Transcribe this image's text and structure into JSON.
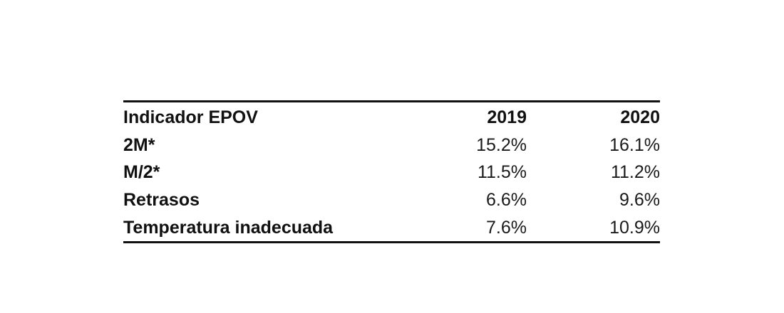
{
  "table": {
    "headers": {
      "indicator": "Indicador EPOV",
      "year_2019": "2019",
      "year_2020": "2020"
    },
    "rows": [
      {
        "label": "2M*",
        "v2019": "15.2%",
        "v2020": "16.1%"
      },
      {
        "label": "M/2*",
        "v2019": "11.5%",
        "v2020": "11.2%"
      },
      {
        "label": "Retrasos",
        "v2019": "6.6%",
        "v2020": "9.6%"
      },
      {
        "label": "Temperatura inadecuada",
        "v2019": "7.6%",
        "v2020": "10.9%"
      }
    ]
  }
}
